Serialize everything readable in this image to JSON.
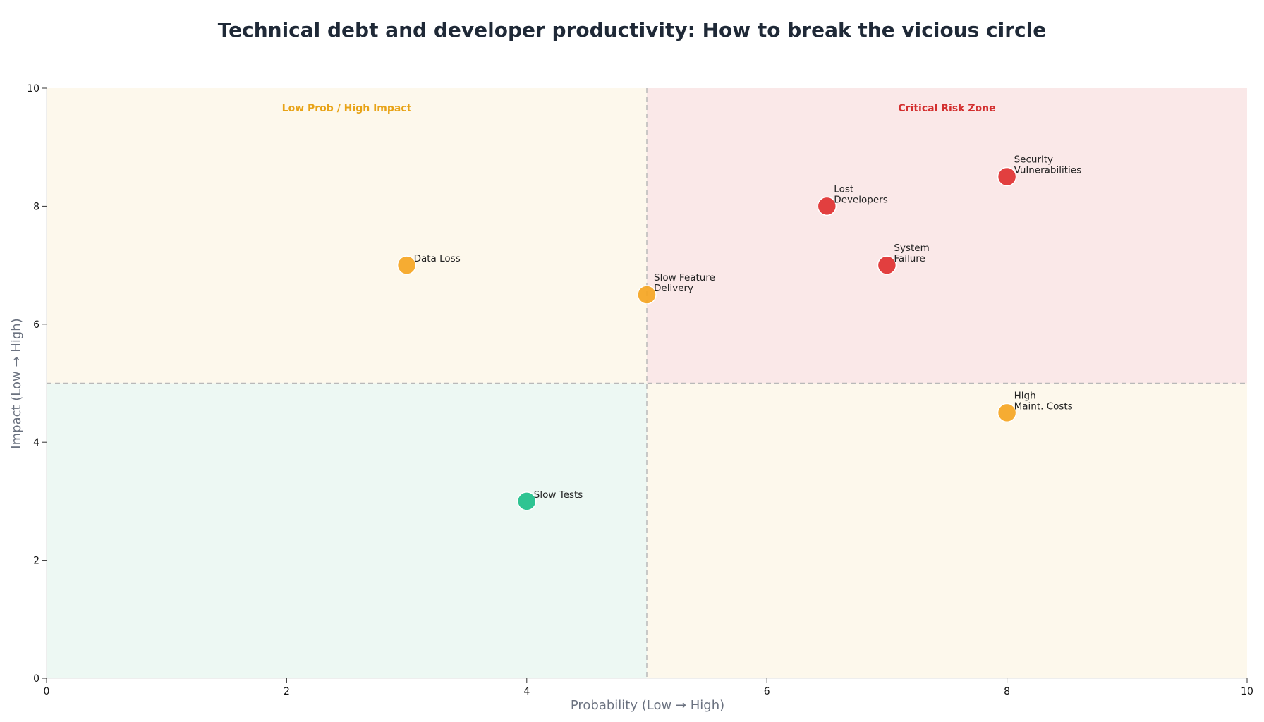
{
  "chart_data": {
    "type": "scatter",
    "title": "Technical debt and developer productivity: How to break the vicious circle",
    "xlabel": "Probability (Low → High)",
    "ylabel": "Impact (Low → High)",
    "xlim": [
      0,
      10
    ],
    "ylim": [
      0,
      10
    ],
    "x_ticks": [
      0,
      2,
      4,
      6,
      8,
      10
    ],
    "y_ticks": [
      0,
      2,
      4,
      6,
      8,
      10
    ],
    "grid": false,
    "thresholds": {
      "x": 5,
      "y": 5
    },
    "quadrants": [
      {
        "id": "top-left",
        "x_range": [
          0,
          5
        ],
        "y_range": [
          5,
          10
        ],
        "fill": "#fdf8ec",
        "label": "Low Prob / High Impact",
        "label_color": "#e8a317"
      },
      {
        "id": "top-right",
        "x_range": [
          5,
          10
        ],
        "y_range": [
          5,
          10
        ],
        "fill": "#fae8e8",
        "label": "Critical Risk Zone",
        "label_color": "#d32f2f"
      },
      {
        "id": "bottom-left",
        "x_range": [
          0,
          5
        ],
        "y_range": [
          0,
          5
        ],
        "fill": "#edf8f3",
        "label": "",
        "label_color": ""
      },
      {
        "id": "bottom-right",
        "x_range": [
          5,
          10
        ],
        "y_range": [
          0,
          5
        ],
        "fill": "#fdf8ec",
        "label": "",
        "label_color": ""
      }
    ],
    "points": [
      {
        "label": [
          "Data Loss"
        ],
        "x": 3,
        "y": 7,
        "color": "#f5a623"
      },
      {
        "label": [
          "Slow Feature",
          "Delivery"
        ],
        "x": 5,
        "y": 6.5,
        "color": "#f5a623"
      },
      {
        "label": [
          "Lost",
          "Developers"
        ],
        "x": 6.5,
        "y": 8,
        "color": "#e03131"
      },
      {
        "label": [
          "Security",
          "Vulnerabilities"
        ],
        "x": 8,
        "y": 8.5,
        "color": "#e03131"
      },
      {
        "label": [
          "System",
          "Failure"
        ],
        "x": 7,
        "y": 7,
        "color": "#e03131"
      },
      {
        "label": [
          "High",
          "Maint. Costs"
        ],
        "x": 8,
        "y": 4.5,
        "color": "#f5a623"
      },
      {
        "label": [
          "Slow Tests"
        ],
        "x": 4,
        "y": 3,
        "color": "#20c08a"
      }
    ]
  }
}
